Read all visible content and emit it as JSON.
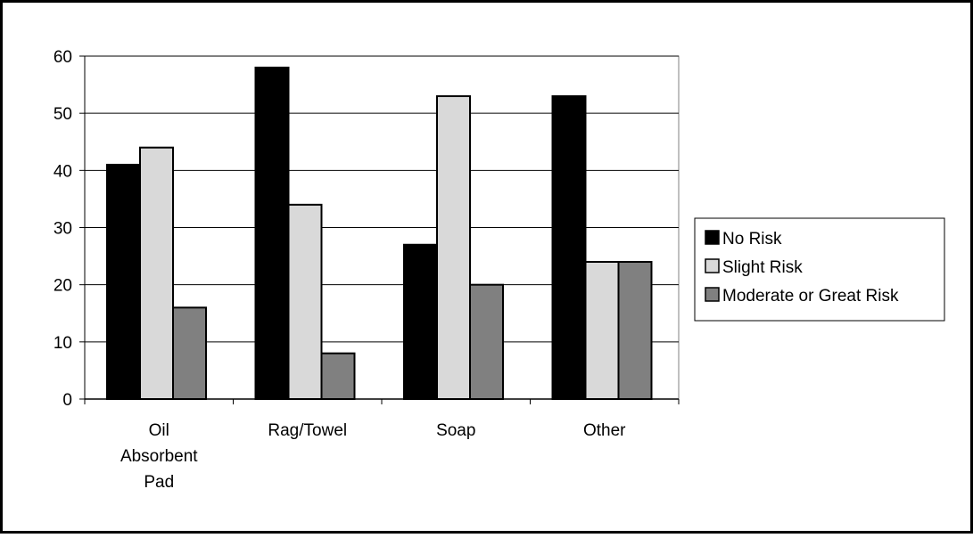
{
  "chart_data": {
    "type": "bar",
    "title": "",
    "xlabel": "",
    "ylabel": "",
    "categories": [
      [
        "Oil",
        "Absorbent",
        "Pad"
      ],
      [
        "Rag/Towel"
      ],
      [
        "Soap"
      ],
      [
        "Other"
      ]
    ],
    "series": [
      {
        "name": "No Risk",
        "values": [
          41,
          58,
          27,
          53
        ],
        "color": "#000000"
      },
      {
        "name": "Slight Risk",
        "values": [
          44,
          34,
          53,
          24
        ],
        "color": "#d9d9d9"
      },
      {
        "name": "Moderate or Great Risk",
        "values": [
          16,
          8,
          20,
          24
        ],
        "color": "#808080"
      }
    ],
    "ylim": [
      0,
      60
    ],
    "yticks": [
      0,
      10,
      20,
      30,
      40,
      50,
      60
    ],
    "grid": true,
    "legend_position": "right"
  }
}
